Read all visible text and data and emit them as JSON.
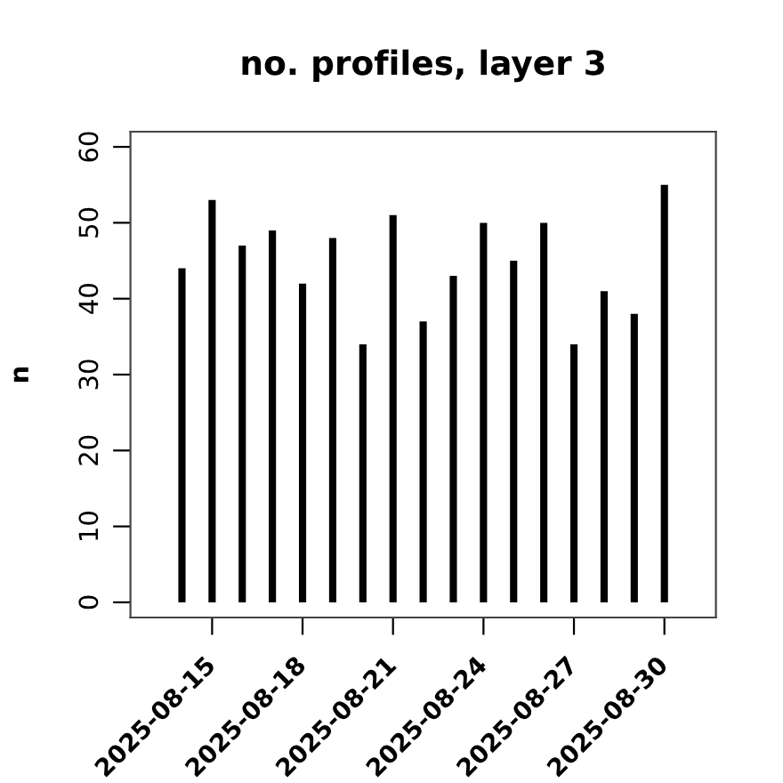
{
  "chart_data": {
    "type": "bar",
    "title": "no. profiles, layer 3",
    "ylabel": "n",
    "x": [
      "2025-08-14",
      "2025-08-15",
      "2025-08-16",
      "2025-08-17",
      "2025-08-18",
      "2025-08-19",
      "2025-08-20",
      "2025-08-21",
      "2025-08-22",
      "2025-08-23",
      "2025-08-24",
      "2025-08-25",
      "2025-08-26",
      "2025-08-27",
      "2025-08-28",
      "2025-08-29",
      "2025-08-30"
    ],
    "values": [
      44,
      53,
      47,
      49,
      42,
      48,
      34,
      51,
      37,
      43,
      50,
      45,
      50,
      34,
      41,
      38,
      55
    ],
    "color": "#000000",
    "xlim": [
      "2025-08-12T07:00",
      "2025-08-31T17:00"
    ],
    "xticks": [
      {
        "value": "2025-08-15",
        "label": "2025-08-15"
      },
      {
        "value": "2025-08-18",
        "label": "2025-08-18"
      },
      {
        "value": "2025-08-21",
        "label": "2025-08-21"
      },
      {
        "value": "2025-08-24",
        "label": "2025-08-24"
      },
      {
        "value": "2025-08-27",
        "label": "2025-08-27"
      },
      {
        "value": "2025-08-30",
        "label": "2025-08-30"
      }
    ],
    "ylim": [
      -2,
      62
    ],
    "yticks": [
      0,
      10,
      20,
      30,
      40,
      50,
      60
    ]
  }
}
